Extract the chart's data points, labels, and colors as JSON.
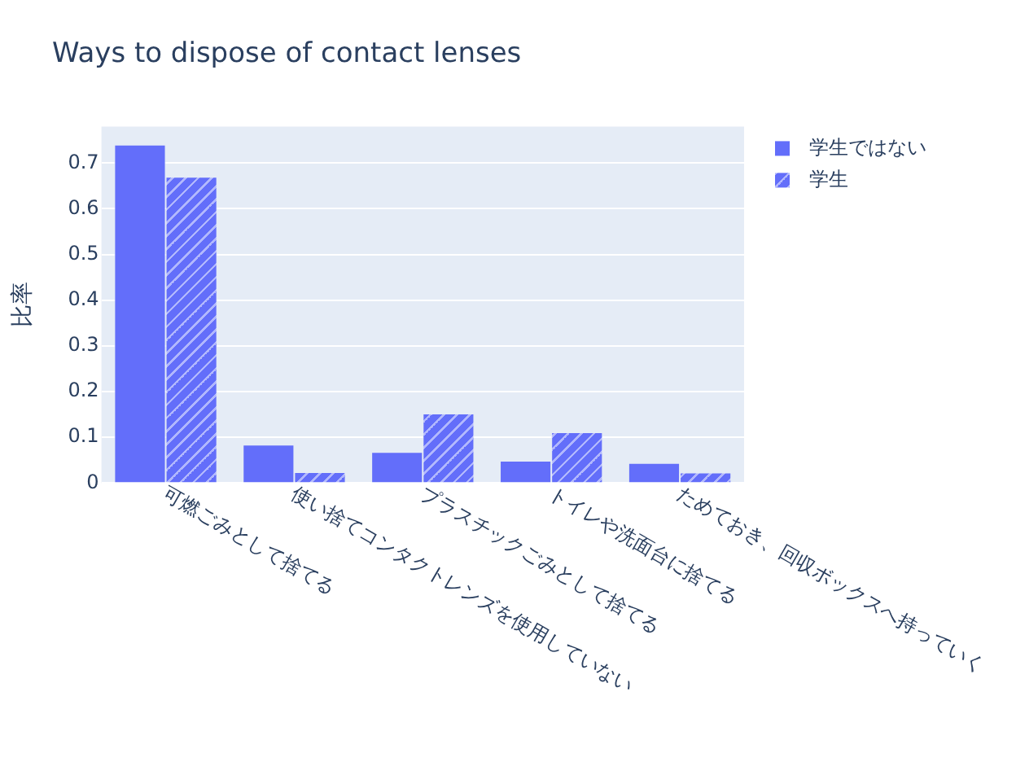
{
  "chart_data": {
    "type": "bar",
    "title": "Ways to dispose of contact lenses",
    "ylabel": "比率",
    "categories": [
      "可燃ごみとして捨てる",
      "使い捨てコンタクトレンズを使用していない",
      "プラスチックごみとして捨てる",
      "トイレや洗面台に捨てる",
      "ためておき、回収ボックスへ持っていく"
    ],
    "series": [
      {
        "name": "学生ではない",
        "color": "#636efa",
        "values": [
          0.74,
          0.084,
          0.068,
          0.049,
          0.044
        ]
      },
      {
        "name": "学生",
        "color": "#636efa",
        "values": [
          0.67,
          0.024,
          0.152,
          0.111,
          0.023
        ]
      }
    ],
    "ylim": [
      0,
      0.78
    ],
    "yticks": [
      0,
      0.1,
      0.2,
      0.3,
      0.4,
      0.5,
      0.6,
      0.7
    ],
    "grid": "y",
    "legend": "top right"
  }
}
